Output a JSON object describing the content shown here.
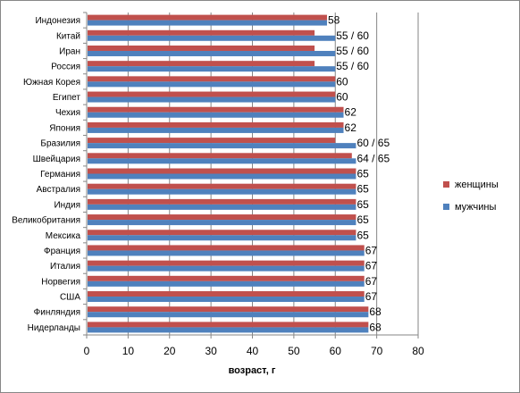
{
  "chart_data": {
    "type": "bar",
    "orientation": "horizontal",
    "categories": [
      "Индонезия",
      "Китай",
      "Иран",
      "Россия",
      "Южная Корея",
      "Египет",
      "Чехия",
      "Япония",
      "Бразилия",
      "Швейцария",
      "Германия",
      "Австралия",
      "Индия",
      "Великобритания",
      "Мексика",
      "Франция",
      "Италия",
      "Норвегия",
      "США",
      "Финляндия",
      "Нидерланды"
    ],
    "series": [
      {
        "name": "женщины",
        "color": "#C0504D",
        "values": [
          58,
          55,
          55,
          55,
          60,
          60,
          62,
          62,
          60,
          64,
          65,
          65,
          65,
          65,
          65,
          67,
          67,
          67,
          67,
          68,
          68
        ]
      },
      {
        "name": "мужчины",
        "color": "#4F81BD",
        "values": [
          58,
          60,
          60,
          60,
          60,
          60,
          62,
          62,
          65,
          65,
          65,
          65,
          65,
          65,
          65,
          67,
          67,
          67,
          67,
          68,
          68
        ]
      }
    ],
    "data_labels": [
      "58",
      "55 / 60",
      "55 / 60",
      "55 / 60",
      "60",
      "60",
      "62",
      "62",
      "60 / 65",
      "64 / 65",
      "65",
      "65",
      "65",
      "65",
      "65",
      "67",
      "67",
      "67",
      "67",
      "68",
      "68"
    ],
    "xlim": [
      0,
      80
    ],
    "xticks": [
      "0",
      "10",
      "20",
      "30",
      "40",
      "50",
      "60",
      "70",
      "80"
    ],
    "xlabel": "возраст, г",
    "ylabel": "",
    "grid": true,
    "legend_position": "right"
  }
}
